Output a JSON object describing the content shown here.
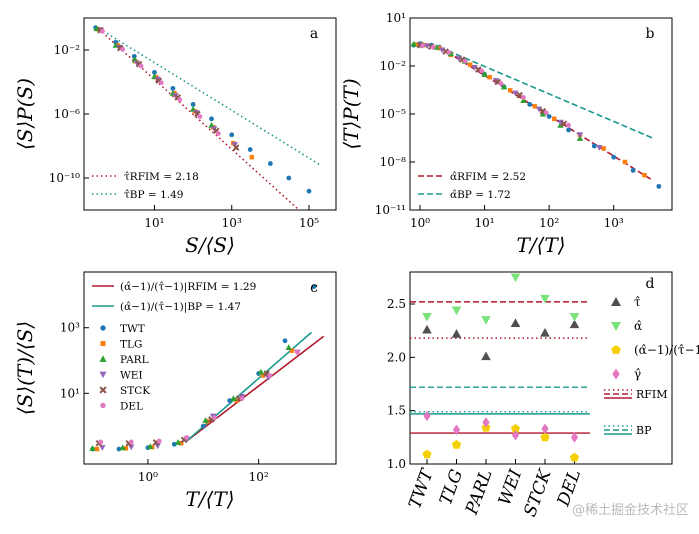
{
  "watermark": "@稀土掘金技术社区",
  "colors": {
    "TWT": "#1f77b4",
    "TLG": "#ff7f0e",
    "PARL": "#2ca02c",
    "WEI": "#9467bd",
    "STCK": "#8c564b",
    "DEL": "#e377c2",
    "RFIM": "#b2182b",
    "BP": "#1a9a8c"
  },
  "chart_data": [
    {
      "id": "a",
      "type": "scatter",
      "letter": "a",
      "xlabel": "S/⟨S⟩",
      "ylabel": "⟨S⟩P(S)",
      "xscale": "log",
      "yscale": "log",
      "xlim": [
        0.15,
        500000
      ],
      "ylim": [
        1e-12,
        1
      ],
      "xticks": [
        {
          "v": 10,
          "label": "10¹"
        },
        {
          "v": 1000,
          "label": "10³"
        },
        {
          "v": 100000,
          "label": "10⁵"
        }
      ],
      "yticks": [
        {
          "v": 0.01,
          "label": "10⁻²"
        },
        {
          "v": 1e-06,
          "label": "10⁻⁶"
        },
        {
          "v": 1e-10,
          "label": "10⁻¹⁰"
        }
      ],
      "legend_position": "bottom-left",
      "fits": [
        {
          "name": "RFIM",
          "style": "dotted",
          "label": "τ̂RFIM = 2.18",
          "exponent": 2.18,
          "x_range": [
            0.3,
            200000
          ],
          "anchor": [
            0.3,
            0.3
          ]
        },
        {
          "name": "BP",
          "style": "dotted",
          "label": "τ̂BP = 1.49",
          "exponent": 1.49,
          "x_range": [
            0.3,
            200000
          ],
          "anchor": [
            0.3,
            0.3
          ]
        }
      ],
      "series": [
        {
          "name": "TWT",
          "marker": "circle",
          "x": [
            0.3,
            1,
            3,
            10,
            30,
            100,
            300,
            1000,
            3000,
            10000,
            30000,
            100000
          ],
          "y": [
            0.25,
            0.03,
            0.004,
            0.0004,
            4e-05,
            4e-06,
            5e-07,
            5e-08,
            6e-09,
            8e-10,
            1e-10,
            1.5e-11
          ]
        },
        {
          "name": "TLG",
          "marker": "square",
          "x": [
            0.35,
            1.1,
            3.2,
            11,
            33,
            110,
            330,
            1100,
            3300
          ],
          "y": [
            0.2,
            0.02,
            0.002,
            0.0002,
            2e-05,
            1.5e-06,
            1.5e-07,
            1.5e-08,
            2e-09
          ]
        },
        {
          "name": "PARL",
          "marker": "triangle-up",
          "x": [
            0.32,
            1,
            3.1,
            10,
            30,
            100,
            300
          ],
          "y": [
            0.22,
            0.02,
            0.0025,
            0.00022,
            2e-05,
            2e-06,
            2e-07
          ]
        },
        {
          "name": "WEI",
          "marker": "triangle-down",
          "x": [
            0.4,
            1.2,
            3.5,
            12,
            35,
            120,
            350,
            1200
          ],
          "y": [
            0.18,
            0.015,
            0.0015,
            0.00015,
            1.4e-05,
            1.2e-06,
            1.2e-07,
            1.2e-08
          ]
        },
        {
          "name": "STCK",
          "marker": "x",
          "x": [
            0.4,
            1.3,
            4,
            13,
            40,
            130,
            400,
            1300
          ],
          "y": [
            0.17,
            0.013,
            0.0013,
            0.00012,
            1.1e-05,
            1e-06,
            9e-08,
            8e-09
          ]
        },
        {
          "name": "DEL",
          "marker": "circle",
          "x": [
            0.45,
            1.5,
            4.5,
            15,
            45,
            150,
            450
          ],
          "y": [
            0.15,
            0.011,
            0.001,
            9e-05,
            8e-06,
            7e-07,
            6e-08
          ]
        }
      ]
    },
    {
      "id": "b",
      "type": "scatter",
      "letter": "b",
      "xlabel": "T/⟨T⟩",
      "ylabel": "⟨T⟩P(T)",
      "xscale": "log",
      "yscale": "log",
      "xlim": [
        0.7,
        8000
      ],
      "ylim": [
        1e-11,
        10
      ],
      "xticks": [
        {
          "v": 1,
          "label": "10⁰"
        },
        {
          "v": 10,
          "label": "10¹"
        },
        {
          "v": 100,
          "label": "10²"
        },
        {
          "v": 1000,
          "label": "10³"
        }
      ],
      "yticks": [
        {
          "v": 10,
          "label": "10¹"
        },
        {
          "v": 0.01,
          "label": "10⁻²"
        },
        {
          "v": 1e-05,
          "label": "10⁻⁵"
        },
        {
          "v": 1e-08,
          "label": "10⁻⁸"
        },
        {
          "v": 1e-11,
          "label": "10⁻¹¹"
        }
      ],
      "legend_position": "bottom-left",
      "fits": [
        {
          "name": "RFIM",
          "style": "dashed",
          "label": "α̂RFIM = 2.52",
          "exponent": 2.52,
          "x_range": [
            2,
            4000
          ],
          "anchor": [
            2,
            0.15
          ]
        },
        {
          "name": "BP",
          "style": "dashed",
          "label": "α̂BP = 1.72",
          "exponent": 1.72,
          "x_range": [
            2,
            4000
          ],
          "anchor": [
            2,
            0.15
          ]
        }
      ],
      "series": [
        {
          "name": "TWT",
          "marker": "circle",
          "x": [
            0.8,
            1,
            1.5,
            2,
            3,
            5,
            10,
            20,
            50,
            100,
            200,
            500,
            1000,
            2000,
            5000
          ],
          "y": [
            0.2,
            0.25,
            0.2,
            0.15,
            0.06,
            0.02,
            0.003,
            0.0005,
            4e-05,
            7e-06,
            1e-06,
            1e-07,
            2e-08,
            3e-09,
            3e-10
          ]
        },
        {
          "name": "TLG",
          "marker": "square",
          "x": [
            0.9,
            1.2,
            2,
            3,
            6,
            12,
            25,
            60,
            120,
            300,
            700,
            1500,
            3000
          ],
          "y": [
            0.22,
            0.2,
            0.13,
            0.05,
            0.012,
            0.002,
            0.0003,
            3e-05,
            5e-06,
            5e-07,
            7e-08,
            1e-08,
            1.5e-09
          ]
        },
        {
          "name": "PARL",
          "marker": "triangle-up",
          "x": [
            0.8,
            1.1,
            1.8,
            3,
            5,
            10,
            20,
            40,
            80,
            150,
            300
          ],
          "y": [
            0.24,
            0.22,
            0.15,
            0.06,
            0.02,
            0.003,
            0.0005,
            7e-05,
            1e-05,
            2e-06,
            3e-07
          ]
        },
        {
          "name": "WEI",
          "marker": "triangle-down",
          "x": [
            1,
            1.3,
            2.2,
            4,
            7,
            15,
            30,
            70,
            150,
            300,
            600
          ],
          "y": [
            0.2,
            0.18,
            0.1,
            0.03,
            0.008,
            0.0012,
            0.0002,
            2e-05,
            3e-06,
            5e-07,
            8e-08
          ]
        },
        {
          "name": "STCK",
          "marker": "x",
          "x": [
            1,
            1.5,
            2.5,
            4.5,
            8,
            16,
            35,
            80,
            170
          ],
          "y": [
            0.2,
            0.16,
            0.08,
            0.025,
            0.006,
            0.001,
            0.00015,
            1.5e-05,
            2.5e-06
          ]
        },
        {
          "name": "DEL",
          "marker": "circle",
          "x": [
            1.1,
            1.6,
            2.8,
            5,
            9,
            18,
            40,
            90,
            200
          ],
          "y": [
            0.19,
            0.15,
            0.07,
            0.02,
            0.005,
            0.0008,
            0.00011,
            1.2e-05,
            2e-06
          ]
        }
      ]
    },
    {
      "id": "c",
      "type": "scatter",
      "letter": "c",
      "xlabel": "T/⟨T⟩",
      "ylabel": "⟨S⟩(T)/⟨S⟩",
      "xscale": "log",
      "yscale": "log",
      "xlim": [
        0.07,
        2500
      ],
      "ylim": [
        0.07,
        50000
      ],
      "xticks": [
        {
          "v": 1,
          "label": "10⁰"
        },
        {
          "v": 100,
          "label": "10²"
        }
      ],
      "yticks": [
        {
          "v": 10,
          "label": "10¹"
        },
        {
          "v": 1000,
          "label": "10³"
        }
      ],
      "legend_position": "top-left",
      "fits": [
        {
          "name": "RFIM",
          "style": "solid",
          "label": "(α̂−1)/(τ̂−1)|RFIM = 1.29",
          "exponent": 1.29,
          "x_range": [
            5,
            1500
          ],
          "anchor": [
            5,
            0.35
          ]
        },
        {
          "name": "BP",
          "style": "solid",
          "label": "(α̂−1)/(τ̂−1)|BP = 1.47",
          "exponent": 1.47,
          "x_range": [
            5,
            900
          ],
          "anchor": [
            5,
            0.35
          ]
        }
      ],
      "series": [
        {
          "name": "TWT",
          "marker": "circle",
          "x": [
            0.1,
            0.3,
            1,
            3,
            10,
            30,
            100,
            300,
            1000
          ],
          "y": [
            0.2,
            0.2,
            0.22,
            0.28,
            1,
            6,
            40,
            400,
            18000
          ]
        },
        {
          "name": "TLG",
          "marker": "square",
          "x": [
            0.12,
            0.4,
            1.2,
            4,
            12,
            40,
            120,
            400
          ],
          "y": [
            0.2,
            0.21,
            0.23,
            0.3,
            1.4,
            6,
            35,
            200
          ]
        },
        {
          "name": "PARL",
          "marker": "triangle-up",
          "x": [
            0.1,
            0.35,
            1.1,
            3.5,
            11,
            35,
            110,
            350
          ],
          "y": [
            0.21,
            0.22,
            0.24,
            0.32,
            1.5,
            7,
            45,
            250
          ]
        },
        {
          "name": "WEI",
          "marker": "triangle-down",
          "x": [
            0.15,
            0.5,
            1.5,
            5,
            15,
            50,
            150,
            500
          ],
          "y": [
            0.22,
            0.23,
            0.25,
            0.4,
            2,
            8,
            30,
            180
          ]
        },
        {
          "name": "STCK",
          "marker": "x",
          "x": [
            0.13,
            0.45,
            1.4,
            4.5,
            14,
            45,
            140
          ],
          "y": [
            0.3,
            0.3,
            0.32,
            0.38,
            1.6,
            7,
            40
          ]
        },
        {
          "name": "DEL",
          "marker": "circle",
          "x": [
            0.14,
            0.5,
            1.6,
            5,
            16,
            50,
            160,
            500
          ],
          "y": [
            0.33,
            0.33,
            0.35,
            0.45,
            1.8,
            7,
            35,
            180
          ]
        }
      ],
      "legend_items": [
        "TWT",
        "TLG",
        "PARL",
        "WEI",
        "STCK",
        "DEL"
      ]
    },
    {
      "id": "d",
      "type": "scatter",
      "letter": "d",
      "categories": [
        "TWT",
        "TLG",
        "PARL",
        "WEI",
        "STCK",
        "DEL"
      ],
      "ylim": [
        1.0,
        2.8
      ],
      "yticks": [
        {
          "v": 1.0,
          "label": "1.0"
        },
        {
          "v": 1.5,
          "label": "1.5"
        },
        {
          "v": 2.0,
          "label": "2.0"
        },
        {
          "v": 2.5,
          "label": "2.5"
        }
      ],
      "series": [
        {
          "name": "τ̂",
          "marker": "triangle-up",
          "color": "#505050",
          "values": [
            2.26,
            2.22,
            2.01,
            2.32,
            2.23,
            2.31
          ]
        },
        {
          "name": "α̂",
          "marker": "triangle-down",
          "color": "#7be37b",
          "values": [
            2.38,
            2.44,
            2.35,
            2.75,
            2.55,
            2.38
          ]
        },
        {
          "name": "(α̂−1)/(τ̂−1)",
          "marker": "pentagon",
          "color": "#f5d000",
          "values": [
            1.09,
            1.18,
            1.34,
            1.33,
            1.25,
            1.06
          ]
        },
        {
          "name": "γ̂",
          "marker": "diamond",
          "color": "#e377c2",
          "values": [
            1.45,
            1.32,
            1.39,
            1.27,
            1.33,
            1.25
          ]
        }
      ],
      "reference_lines": [
        {
          "group": "RFIM",
          "style": "dashed",
          "value": 2.52
        },
        {
          "group": "RFIM",
          "style": "dotted",
          "value": 2.18
        },
        {
          "group": "RFIM",
          "style": "solid",
          "value": 1.29
        },
        {
          "group": "BP",
          "style": "dashed",
          "value": 1.72
        },
        {
          "group": "BP",
          "style": "dotted",
          "value": 1.49
        },
        {
          "group": "BP",
          "style": "solid",
          "value": 1.47
        }
      ],
      "legend_labels": [
        "τ̂",
        "α̂",
        "(α̂−1)/(τ̂−1)",
        "γ̂",
        "RFIM",
        "BP"
      ]
    }
  ]
}
